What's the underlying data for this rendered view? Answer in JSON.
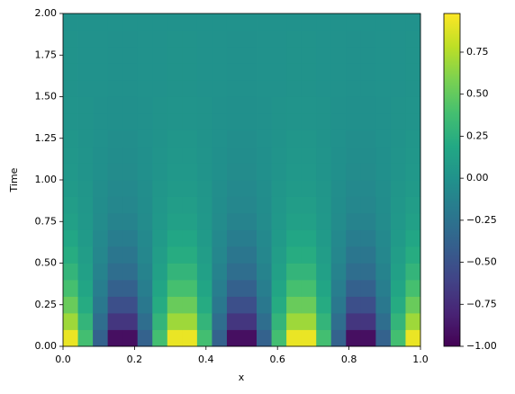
{
  "chart_data": {
    "type": "heatmap",
    "xlabel": "x",
    "ylabel": "Time",
    "colormap": "viridis",
    "xlim": [
      0,
      1
    ],
    "ylim": [
      0,
      2
    ],
    "clim": [
      -1,
      0.98
    ],
    "xticks": [
      {
        "value": 0,
        "label": "0.0"
      },
      {
        "value": 0.2,
        "label": "0.2"
      },
      {
        "value": 0.4,
        "label": "0.4"
      },
      {
        "value": 0.6,
        "label": "0.6"
      },
      {
        "value": 0.8,
        "label": "0.8"
      },
      {
        "value": 1,
        "label": "1.0"
      }
    ],
    "yticks": [
      {
        "value": 0,
        "label": "0.00"
      },
      {
        "value": 0.25,
        "label": "0.25"
      },
      {
        "value": 0.5,
        "label": "0.50"
      },
      {
        "value": 0.75,
        "label": "0.75"
      },
      {
        "value": 1,
        "label": "1.00"
      },
      {
        "value": 1.25,
        "label": "1.25"
      },
      {
        "value": 1.5,
        "label": "1.50"
      },
      {
        "value": 1.75,
        "label": "1.75"
      },
      {
        "value": 2,
        "label": "2.00"
      }
    ],
    "cticks": [
      {
        "value": -1,
        "label": "−1.00"
      },
      {
        "value": -0.75,
        "label": "−0.75"
      },
      {
        "value": -0.5,
        "label": "−0.50"
      },
      {
        "value": -0.25,
        "label": "−0.25"
      },
      {
        "value": 0,
        "label": "0.00"
      },
      {
        "value": 0.25,
        "label": "0.25"
      },
      {
        "value": 0.5,
        "label": "0.50"
      },
      {
        "value": 0.75,
        "label": "0.75"
      }
    ],
    "z": [
      [
        0.92,
        0.38,
        -0.38,
        -0.92,
        -0.92,
        -0.38,
        0.38,
        0.92,
        0.92,
        0.38,
        -0.38,
        -0.92,
        -0.92,
        -0.38,
        0.38,
        0.92,
        0.92,
        0.38,
        -0.38,
        -0.92,
        -0.92,
        -0.38,
        0.38,
        0.92
      ],
      [
        0.69,
        0.29,
        -0.29,
        -0.69,
        -0.69,
        -0.29,
        0.29,
        0.69,
        0.69,
        0.29,
        -0.29,
        -0.69,
        -0.69,
        -0.29,
        0.29,
        0.69,
        0.69,
        0.29,
        -0.29,
        -0.69,
        -0.69,
        -0.29,
        0.29,
        0.69
      ],
      [
        0.52,
        0.21,
        -0.21,
        -0.52,
        -0.52,
        -0.21,
        0.21,
        0.52,
        0.52,
        0.21,
        -0.21,
        -0.52,
        -0.52,
        -0.21,
        0.21,
        0.52,
        0.52,
        0.21,
        -0.21,
        -0.52,
        -0.52,
        -0.21,
        0.21,
        0.52
      ],
      [
        0.39,
        0.16,
        -0.16,
        -0.39,
        -0.39,
        -0.16,
        0.16,
        0.39,
        0.39,
        0.16,
        -0.16,
        -0.39,
        -0.39,
        -0.16,
        0.16,
        0.39,
        0.39,
        0.16,
        -0.16,
        -0.39,
        -0.39,
        -0.16,
        0.16,
        0.39
      ],
      [
        0.29,
        0.12,
        -0.12,
        -0.29,
        -0.29,
        -0.12,
        0.12,
        0.29,
        0.29,
        0.12,
        -0.12,
        -0.29,
        -0.29,
        -0.12,
        0.12,
        0.29,
        0.29,
        0.12,
        -0.12,
        -0.29,
        -0.29,
        -0.12,
        0.12,
        0.29
      ],
      [
        0.22,
        0.09,
        -0.09,
        -0.22,
        -0.22,
        -0.09,
        0.09,
        0.22,
        0.22,
        0.09,
        -0.09,
        -0.22,
        -0.22,
        -0.09,
        0.09,
        0.22,
        0.22,
        0.09,
        -0.09,
        -0.22,
        -0.22,
        -0.09,
        0.09,
        0.22
      ],
      [
        0.17,
        0.07,
        -0.07,
        -0.17,
        -0.17,
        -0.07,
        0.07,
        0.17,
        0.17,
        0.07,
        -0.07,
        -0.17,
        -0.17,
        -0.07,
        0.07,
        0.17,
        0.17,
        0.07,
        -0.07,
        -0.17,
        -0.17,
        -0.07,
        0.07,
        0.17
      ],
      [
        0.12,
        0.05,
        -0.05,
        -0.12,
        -0.12,
        -0.05,
        0.05,
        0.12,
        0.12,
        0.05,
        -0.05,
        -0.12,
        -0.12,
        -0.05,
        0.05,
        0.12,
        0.12,
        0.05,
        -0.05,
        -0.12,
        -0.12,
        -0.05,
        0.05,
        0.12
      ],
      [
        0.09,
        0.04,
        -0.04,
        -0.09,
        -0.09,
        -0.04,
        0.04,
        0.09,
        0.09,
        0.04,
        -0.04,
        -0.09,
        -0.09,
        -0.04,
        0.04,
        0.09,
        0.09,
        0.04,
        -0.04,
        -0.09,
        -0.09,
        -0.04,
        0.04,
        0.09
      ],
      [
        0.07,
        0.03,
        -0.03,
        -0.07,
        -0.07,
        -0.03,
        0.03,
        0.07,
        0.07,
        0.03,
        -0.03,
        -0.07,
        -0.07,
        -0.03,
        0.03,
        0.07,
        0.07,
        0.03,
        -0.03,
        -0.07,
        -0.07,
        -0.03,
        0.03,
        0.07
      ],
      [
        0.05,
        0.02,
        -0.02,
        -0.05,
        -0.05,
        -0.02,
        0.02,
        0.05,
        0.05,
        0.02,
        -0.02,
        -0.05,
        -0.05,
        -0.02,
        0.02,
        0.05,
        0.05,
        0.02,
        -0.02,
        -0.05,
        -0.05,
        -0.02,
        0.02,
        0.05
      ],
      [
        0.04,
        0.02,
        -0.02,
        -0.04,
        -0.04,
        -0.02,
        0.02,
        0.04,
        0.04,
        0.02,
        -0.02,
        -0.04,
        -0.04,
        -0.02,
        0.02,
        0.04,
        0.04,
        0.02,
        -0.02,
        -0.04,
        -0.04,
        -0.02,
        0.02,
        0.04
      ],
      [
        0.03,
        0.01,
        -0.01,
        -0.03,
        -0.03,
        -0.01,
        0.01,
        0.03,
        0.03,
        0.01,
        -0.01,
        -0.03,
        -0.03,
        -0.01,
        0.01,
        0.03,
        0.03,
        0.01,
        -0.01,
        -0.03,
        -0.03,
        -0.01,
        0.01,
        0.03
      ],
      [
        0.02,
        0.01,
        -0.01,
        -0.02,
        -0.02,
        -0.01,
        0.01,
        0.02,
        0.02,
        0.01,
        -0.01,
        -0.02,
        -0.02,
        -0.01,
        0.01,
        0.02,
        0.02,
        0.01,
        -0.01,
        -0.02,
        -0.02,
        -0.01,
        0.01,
        0.02
      ],
      [
        0.02,
        0.01,
        -0.01,
        -0.02,
        -0.02,
        -0.01,
        0.01,
        0.02,
        0.02,
        0.01,
        -0.01,
        -0.02,
        -0.02,
        -0.01,
        0.01,
        0.02,
        0.02,
        0.01,
        -0.01,
        -0.02,
        -0.02,
        -0.01,
        0.01,
        0.02
      ],
      [
        0.01,
        0,
        0,
        -0.01,
        -0.01,
        0,
        0,
        0.01,
        0.01,
        0,
        0,
        -0.01,
        -0.01,
        0,
        0,
        0.01,
        0.01,
        0,
        0,
        -0.01,
        -0.01,
        0,
        0,
        0.01
      ],
      [
        0.01,
        0,
        0,
        -0.01,
        -0.01,
        0,
        0,
        0.01,
        0.01,
        0,
        0,
        -0.01,
        -0.01,
        0,
        0,
        0.01,
        0.01,
        0,
        0,
        -0.01,
        -0.01,
        0,
        0,
        0.01
      ],
      [
        0.01,
        0,
        0,
        -0.01,
        -0.01,
        0,
        0,
        0.01,
        0.01,
        0,
        0,
        -0.01,
        -0.01,
        0,
        0,
        0.01,
        0.01,
        0,
        0,
        -0.01,
        -0.01,
        0,
        0,
        0.01
      ],
      [
        0.01,
        0,
        0,
        -0.01,
        -0.01,
        0,
        0,
        0.01,
        0.01,
        0,
        0,
        -0.01,
        -0.01,
        0,
        0,
        0.01,
        0.01,
        0,
        0,
        -0.01,
        -0.01,
        0,
        0,
        0.01
      ],
      [
        0,
        0,
        0,
        0,
        0,
        0,
        0,
        0,
        0,
        0,
        0,
        0,
        0,
        0,
        0,
        0,
        0,
        0,
        0,
        0,
        0,
        0,
        0,
        0
      ]
    ]
  }
}
